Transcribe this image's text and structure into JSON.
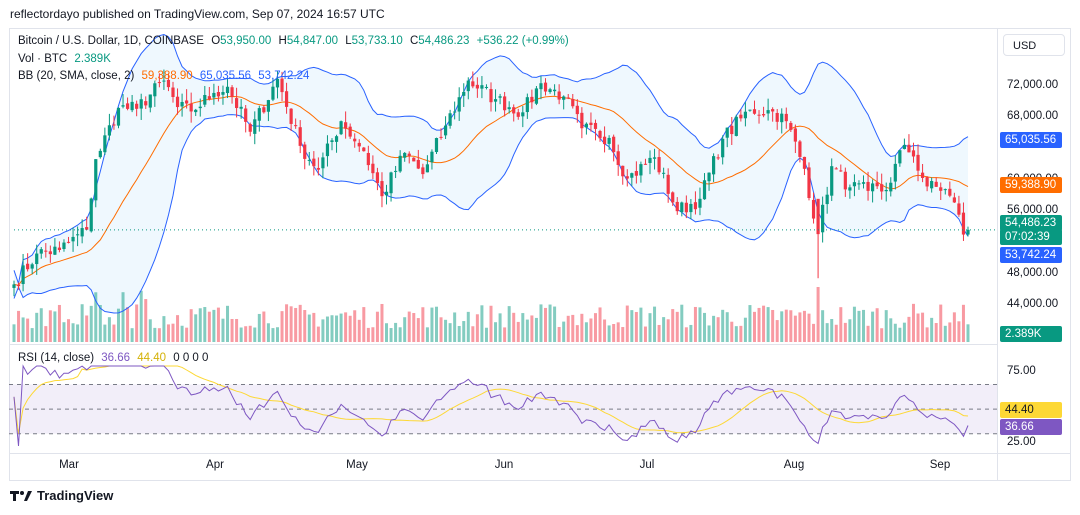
{
  "header": {
    "publisher": "reflectordayo published on TradingView.com, Sep 07, 2024 16:57 UTC"
  },
  "legend": {
    "symbol": "Bitcoin / U.S. Dollar, 1D, COINBASE",
    "o_label": "O",
    "open": "53,950.00",
    "h_label": "H",
    "high": "54,847.00",
    "l_label": "L",
    "low": "53,733.10",
    "c_label": "C",
    "close": "54,486.23",
    "change": "+536.22 (+0.99%)",
    "vol_label": "Vol · BTC",
    "vol": "2.389K",
    "bb_label": "BB (20, SMA, close, 2)",
    "bb_basis": "59,388.90",
    "bb_upper": "65,035.56",
    "bb_lower": "53,742.24",
    "rsi_label": "RSI (14, close)",
    "rsi": "36.66",
    "rsi_ma": "44.40",
    "rsi_extra": "0  0  0  0"
  },
  "currency": "USD",
  "price_axis": [
    "72,000.00",
    "68,000.00",
    "60,000.00",
    "56,000.00",
    "48,000.00",
    "44,000.00"
  ],
  "price_tags": {
    "upper": "65,035.56",
    "basis": "59,388.90",
    "close": "54,486.23",
    "countdown": "07:02:39",
    "lower": "53,742.24",
    "vol": "2.389K"
  },
  "rsi_axis": [
    "75.00",
    "25.00"
  ],
  "rsi_tags": {
    "ma": "44.40",
    "rsi": "36.66"
  },
  "x_axis": [
    "Mar",
    "Apr",
    "May",
    "Jun",
    "Jul",
    "Aug",
    "Sep"
  ],
  "footer": {
    "brand": "TradingView"
  },
  "colors": {
    "up": "#089981",
    "down": "#f23645",
    "basis": "#ff6d00",
    "band": "#2962ff",
    "rsi": "#7e57c2",
    "rsi_ma": "#fdd835"
  },
  "chart_data": {
    "type": "candlestick",
    "title": "Bitcoin / U.S. Dollar, 1D, COINBASE",
    "price_range": [
      42000,
      76000
    ],
    "rsi_range": [
      20,
      85
    ],
    "rsi_levels": [
      70,
      50,
      30
    ],
    "date_range": [
      "2024-02-10",
      "2024-09-07"
    ],
    "price_anchors": [
      {
        "date": "2024-02-10",
        "close": 48300
      },
      {
        "date": "2024-02-15",
        "close": 51800
      },
      {
        "date": "2024-02-20",
        "close": 52200
      },
      {
        "date": "2024-02-26",
        "close": 54500
      },
      {
        "date": "2024-02-28",
        "close": 62500
      },
      {
        "date": "2024-03-04",
        "close": 68300
      },
      {
        "date": "2024-03-08",
        "close": 68200
      },
      {
        "date": "2024-03-14",
        "close": 71400
      },
      {
        "date": "2024-03-17",
        "close": 68400
      },
      {
        "date": "2024-03-20",
        "close": 67900
      },
      {
        "date": "2024-03-25",
        "close": 70000
      },
      {
        "date": "2024-03-28",
        "close": 70700
      },
      {
        "date": "2024-04-02",
        "close": 65600
      },
      {
        "date": "2024-04-08",
        "close": 71600
      },
      {
        "date": "2024-04-13",
        "close": 64000
      },
      {
        "date": "2024-04-17",
        "close": 61300
      },
      {
        "date": "2024-04-22",
        "close": 66800
      },
      {
        "date": "2024-04-27",
        "close": 63400
      },
      {
        "date": "2024-05-01",
        "close": 58300
      },
      {
        "date": "2024-05-06",
        "close": 63200
      },
      {
        "date": "2024-05-10",
        "close": 60800
      },
      {
        "date": "2024-05-15",
        "close": 66300
      },
      {
        "date": "2024-05-20",
        "close": 71400
      },
      {
        "date": "2024-05-26",
        "close": 69300
      },
      {
        "date": "2024-06-01",
        "close": 67800
      },
      {
        "date": "2024-06-05",
        "close": 71100
      },
      {
        "date": "2024-06-10",
        "close": 69600
      },
      {
        "date": "2024-06-14",
        "close": 66000
      },
      {
        "date": "2024-06-20",
        "close": 64900
      },
      {
        "date": "2024-06-24",
        "close": 60300
      },
      {
        "date": "2024-06-30",
        "close": 62700
      },
      {
        "date": "2024-07-05",
        "close": 56600
      },
      {
        "date": "2024-07-10",
        "close": 58000
      },
      {
        "date": "2024-07-15",
        "close": 64800
      },
      {
        "date": "2024-07-21",
        "close": 68100
      },
      {
        "date": "2024-07-26",
        "close": 67900
      },
      {
        "date": "2024-07-29",
        "close": 66800
      },
      {
        "date": "2024-08-02",
        "close": 61400
      },
      {
        "date": "2024-08-05",
        "close": 54000
      },
      {
        "date": "2024-08-08",
        "close": 61700
      },
      {
        "date": "2024-08-12",
        "close": 59300
      },
      {
        "date": "2024-08-16",
        "close": 58900
      },
      {
        "date": "2024-08-20",
        "close": 59000
      },
      {
        "date": "2024-08-24",
        "close": 64100
      },
      {
        "date": "2024-08-26",
        "close": 62800
      },
      {
        "date": "2024-08-29",
        "close": 59400
      },
      {
        "date": "2024-09-02",
        "close": 59100
      },
      {
        "date": "2024-09-05",
        "close": 56200
      },
      {
        "date": "2024-09-06",
        "close": 53950
      },
      {
        "date": "2024-09-07",
        "close": 54486
      }
    ],
    "last_candle": {
      "date": "2024-09-07",
      "open": 53950.0,
      "high": 54847.0,
      "low": 53733.1,
      "close": 54486.23
    },
    "bollinger_last": {
      "upper": 65035.56,
      "basis": 59388.9,
      "lower": 53742.24
    },
    "rsi_last": 36.66,
    "rsi_ma_last": 44.4,
    "volume_last": "2.389K"
  }
}
